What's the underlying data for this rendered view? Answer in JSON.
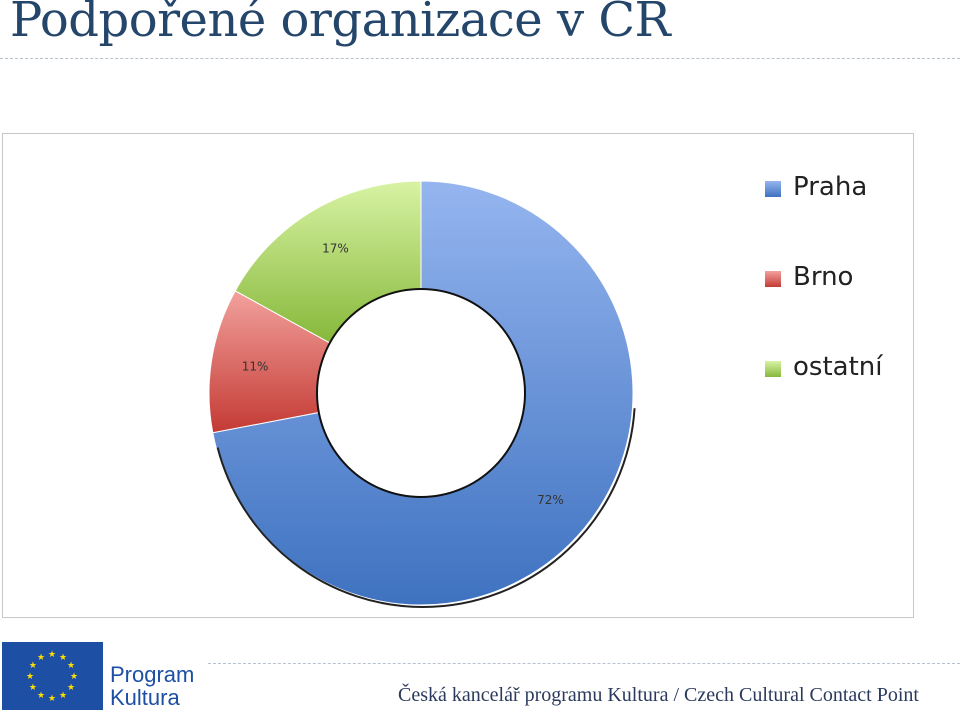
{
  "slide": {
    "title": "Podpořené organizace v ČR"
  },
  "chart_data": {
    "type": "pie",
    "variant": "doughnut",
    "categories": [
      "Praha",
      "Brno",
      "ostatní"
    ],
    "values": [
      72,
      11,
      17
    ],
    "data_labels": [
      "72%",
      "11%",
      "17%"
    ],
    "colors": [
      "#4f81bd",
      "#c0504d",
      "#9bbb59"
    ],
    "legend_position": "right"
  },
  "footer": {
    "program_line1": "Program",
    "program_line2": "Kultura",
    "text": "Česká kancelář programu Kultura / Czech Cultural Contact Point"
  }
}
